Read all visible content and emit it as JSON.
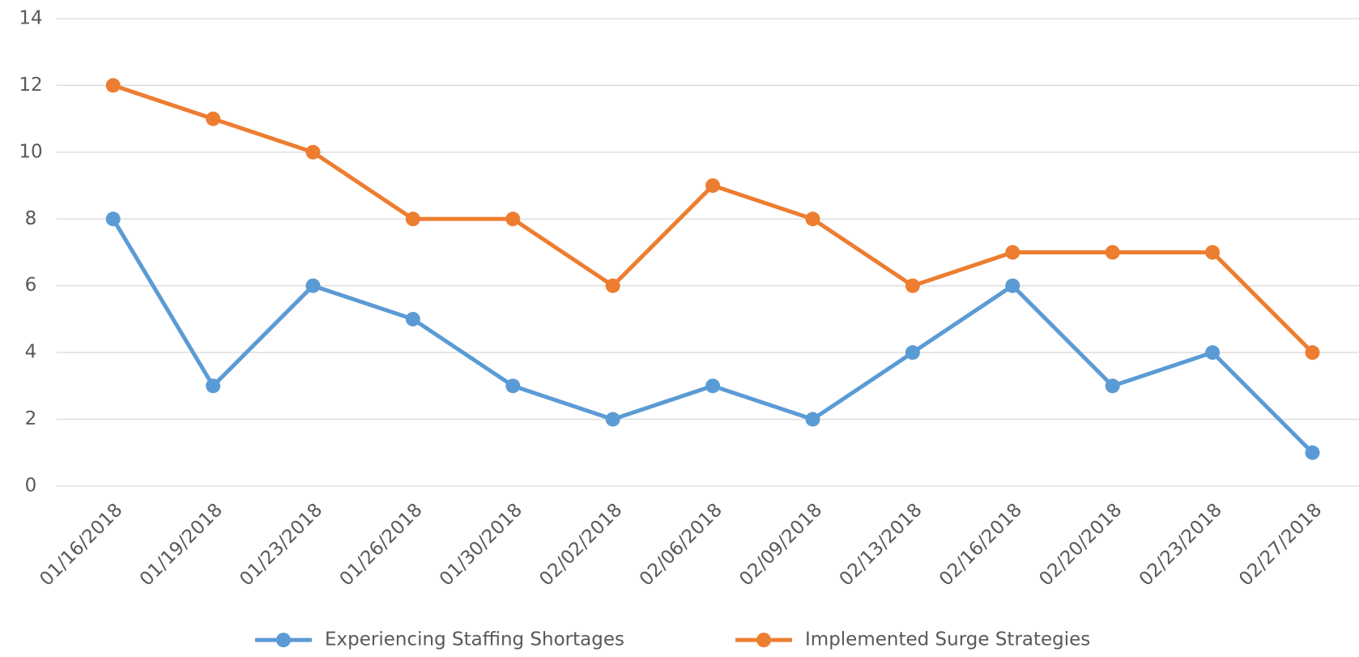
{
  "chart_data": {
    "type": "line",
    "categories": [
      "01/16/2018",
      "01/19/2018",
      "01/23/2018",
      "01/26/2018",
      "01/30/2018",
      "02/02/2018",
      "02/06/2018",
      "02/09/2018",
      "02/13/2018",
      "02/16/2018",
      "02/20/2018",
      "02/23/2018",
      "02/27/2018"
    ],
    "series": [
      {
        "name": "Experiencing Staffing Shortages",
        "color": "#5b9bd5",
        "values": [
          8,
          3,
          6,
          5,
          3,
          2,
          3,
          2,
          4,
          6,
          3,
          4,
          1
        ]
      },
      {
        "name": "Implemented Surge Strategies",
        "color": "#ed7d31",
        "values": [
          12,
          11,
          10,
          8,
          8,
          6,
          9,
          8,
          6,
          7,
          7,
          7,
          4
        ]
      }
    ],
    "ylim": [
      0,
      14
    ],
    "yticks": [
      0,
      2,
      4,
      6,
      8,
      10,
      12,
      14
    ],
    "grid": true,
    "legend": "bottom"
  }
}
